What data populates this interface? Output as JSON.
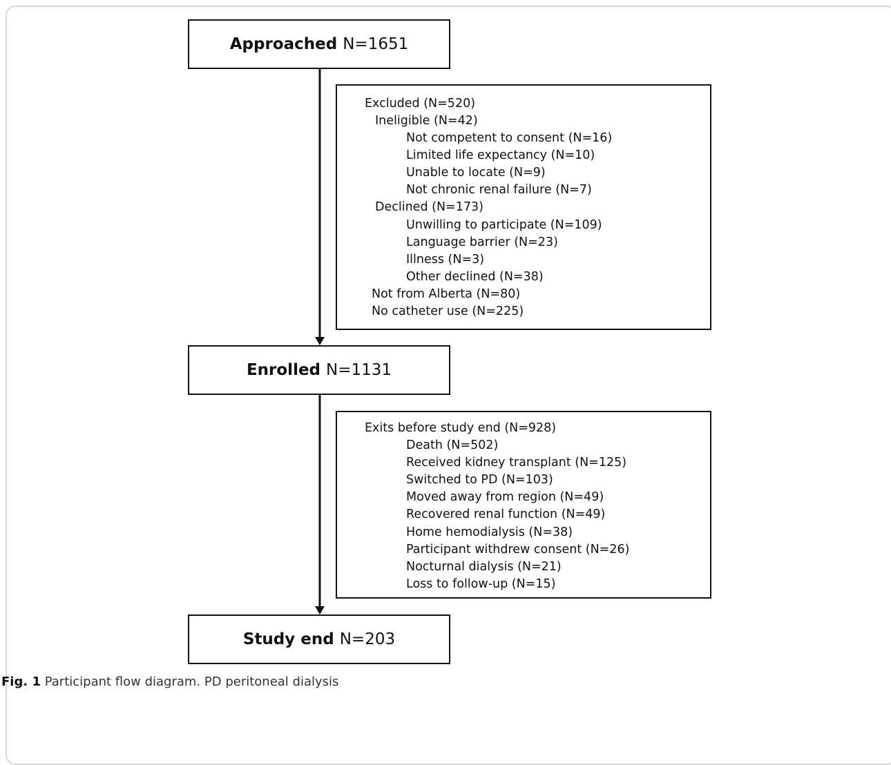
{
  "boxes": {
    "approached": {
      "label": "Approached",
      "value": "N=1651"
    },
    "enrolled": {
      "label": "Enrolled",
      "value": "N=1131"
    },
    "study_end": {
      "label": "Study end",
      "value": "N=203"
    }
  },
  "excluded": {
    "title": "Excluded (N=520)",
    "ineligible": "Ineligible (N=42)",
    "ineligible_items": [
      "Not competent to consent (N=16)",
      "Limited life expectancy (N=10)",
      "Unable to locate (N=9)",
      "Not chronic renal failure (N=7)"
    ],
    "declined": "Declined (N=173)",
    "declined_items": [
      "Unwilling to participate (N=109)",
      "Language barrier (N=23)",
      "Illness (N=3)",
      "Other declined (N=38)"
    ],
    "not_from_alberta": "Not from Alberta (N=80)",
    "no_catheter": "No catheter use (N=225)"
  },
  "exits": {
    "title": "Exits before study end (N=928)",
    "items": [
      "Death (N=502)",
      "Received kidney transplant (N=125)",
      "Switched to PD (N=103)",
      "Moved away from region (N=49)",
      "Recovered renal function (N=49)",
      "Home hemodialysis (N=38)",
      "Participant withdrew consent (N=26)",
      "Nocturnal dialysis (N=21)",
      "Loss to follow-up (N=15)"
    ]
  },
  "caption": {
    "fig_label": "Fig. 1",
    "text": "Participant flow diagram. PD peritoneal dialysis"
  }
}
